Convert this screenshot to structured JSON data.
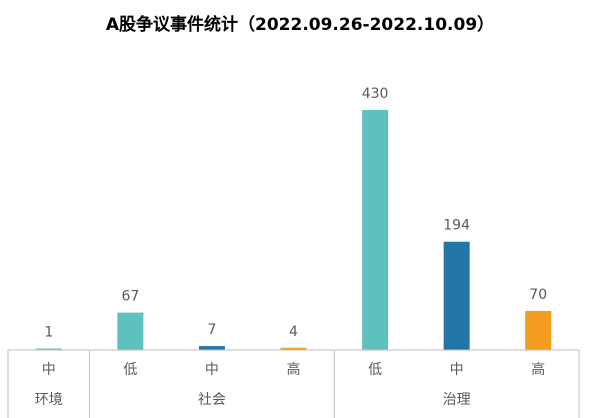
{
  "chart_data": {
    "type": "bar",
    "title": "A股争议事件统计（2022.09.26-2022.10.09）",
    "xlabel": "",
    "ylabel": "",
    "ylim": [
      0,
      430
    ],
    "grid": false,
    "legend": "none",
    "groups": [
      {
        "label": "环境",
        "span": 1
      },
      {
        "label": "社会",
        "span": 3
      },
      {
        "label": "治理",
        "span": 3
      }
    ],
    "categories": [
      "中",
      "低",
      "中",
      "高",
      "低",
      "中",
      "高"
    ],
    "values": [
      1,
      67,
      7,
      4,
      430,
      194,
      70
    ],
    "colors": [
      "#5fc0c0",
      "#5fc0c0",
      "#2176a5",
      "#f39c1f",
      "#5fc0c0",
      "#2176a5",
      "#f39c1f"
    ],
    "value_labels": [
      "1",
      "67",
      "7",
      "4",
      "430",
      "194",
      "70"
    ],
    "axis_color": "#bfbfbf"
  }
}
